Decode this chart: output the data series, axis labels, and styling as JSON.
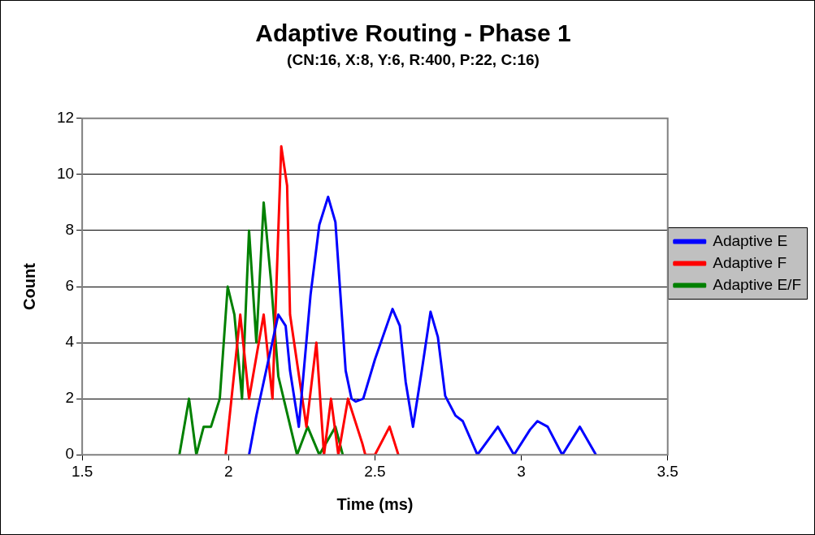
{
  "chart_data": {
    "type": "line",
    "title": "Adaptive Routing - Phase 1",
    "subtitle": "(CN:16, X:8, Y:6, R:400, P:22, C:16)",
    "xlabel": "Time (ms)",
    "ylabel": "Count",
    "series": [
      {
        "name": "Adaptive E",
        "color": "#0000ff",
        "x": [
          2.07,
          2.095,
          2.17,
          2.195,
          2.21,
          2.24,
          2.28,
          2.31,
          2.34,
          2.365,
          2.4,
          2.42,
          2.434,
          2.46,
          2.5,
          2.56,
          2.585,
          2.605,
          2.63,
          2.66,
          2.69,
          2.715,
          2.74,
          2.775,
          2.8,
          2.85,
          2.92,
          2.975,
          3.03,
          3.055,
          3.09,
          3.14,
          3.2,
          3.255
        ],
        "values": [
          0,
          1.4,
          5,
          4.6,
          3,
          1,
          5.7,
          8.2,
          9.2,
          8.3,
          3,
          2,
          1.9,
          2,
          3.4,
          5.2,
          4.6,
          2.6,
          1,
          3,
          5.1,
          4.2,
          2.1,
          1.4,
          1.2,
          0,
          1,
          0,
          0.9,
          1.2,
          1,
          0,
          1,
          0
        ]
      },
      {
        "name": "Adaptive F",
        "color": "#ff0000",
        "x": [
          1.99,
          2.02,
          2.04,
          2.07,
          2.095,
          2.12,
          2.15,
          2.18,
          2.2,
          2.21,
          2.266,
          2.3,
          2.326,
          2.35,
          2.375,
          2.408,
          2.457,
          2.467,
          2.5,
          2.55,
          2.58
        ],
        "values": [
          0,
          3,
          5,
          2,
          3.5,
          5,
          2,
          11,
          9.6,
          5,
          1,
          4,
          0,
          2,
          0,
          2,
          0.4,
          0,
          0,
          1,
          0
        ]
      },
      {
        "name": "Adaptive E/F",
        "color": "#008000",
        "x": [
          1.832,
          1.865,
          1.89,
          1.915,
          1.94,
          1.97,
          1.997,
          2.02,
          2.046,
          2.07,
          2.095,
          2.12,
          2.145,
          2.17,
          2.234,
          2.27,
          2.31,
          2.365,
          2.39
        ],
        "values": [
          0,
          2,
          0,
          1,
          1,
          2,
          6,
          5,
          2,
          8,
          4,
          9,
          6.2,
          2.8,
          0,
          1,
          0,
          1,
          0
        ]
      }
    ],
    "xlim": [
      1.5,
      3.5
    ],
    "xticks": [
      1.5,
      2,
      2.5,
      3,
      3.5
    ],
    "ylim": [
      0,
      12
    ],
    "yticks": [
      0,
      2,
      4,
      6,
      8,
      10,
      12
    ],
    "grid": "y",
    "legend": "right"
  }
}
